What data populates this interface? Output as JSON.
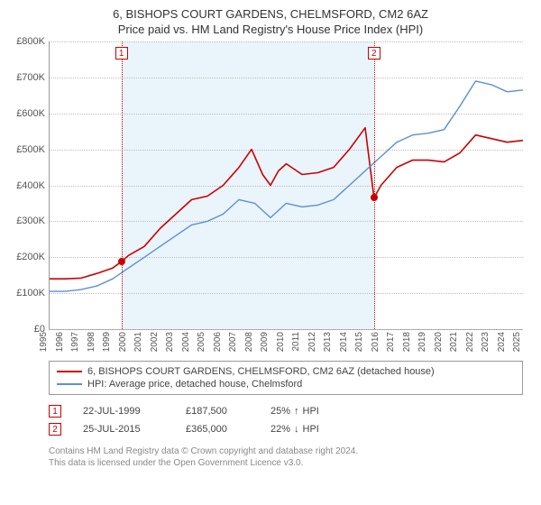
{
  "title_line1": "6, BISHOPS COURT GARDENS, CHELMSFORD, CM2 6AZ",
  "title_line2": "Price paid vs. HM Land Registry's House Price Index (HPI)",
  "chart": {
    "type": "line",
    "background_color": "#ffffff",
    "shaded_band_color": "#eaf4fb",
    "grid_color": "#bfbfbf",
    "axis_color": "#999999",
    "label_fontsize": 11,
    "y": {
      "min": 0,
      "max": 800000,
      "tick_step": 100000,
      "ticks": [
        "£0",
        "£100K",
        "£200K",
        "£300K",
        "£400K",
        "£500K",
        "£600K",
        "£700K",
        "£800K"
      ]
    },
    "x": {
      "start_year": 1995,
      "end_year": 2025,
      "ticks": [
        "1995",
        "1996",
        "1997",
        "1998",
        "1999",
        "2000",
        "2001",
        "2002",
        "2003",
        "2004",
        "2005",
        "2006",
        "2007",
        "2008",
        "2009",
        "2010",
        "2011",
        "2012",
        "2013",
        "2014",
        "2015",
        "2016",
        "2017",
        "2018",
        "2019",
        "2020",
        "2021",
        "2022",
        "2023",
        "2024",
        "2025"
      ]
    },
    "series": [
      {
        "id": "subject",
        "label": "6, BISHOPS COURT GARDENS, CHELMSFORD, CM2 6AZ (detached house)",
        "color": "#cc0000",
        "line_width": 1.6,
        "points": [
          [
            1995.0,
            140000
          ],
          [
            1996.0,
            140000
          ],
          [
            1997.0,
            142000
          ],
          [
            1998.0,
            155000
          ],
          [
            1999.0,
            170000
          ],
          [
            1999.55,
            187500
          ],
          [
            2000.0,
            205000
          ],
          [
            2001.0,
            230000
          ],
          [
            2002.0,
            280000
          ],
          [
            2003.0,
            320000
          ],
          [
            2004.0,
            360000
          ],
          [
            2005.0,
            370000
          ],
          [
            2006.0,
            400000
          ],
          [
            2007.0,
            450000
          ],
          [
            2007.8,
            500000
          ],
          [
            2008.5,
            430000
          ],
          [
            2009.0,
            400000
          ],
          [
            2009.5,
            440000
          ],
          [
            2010.0,
            460000
          ],
          [
            2011.0,
            430000
          ],
          [
            2012.0,
            435000
          ],
          [
            2013.0,
            450000
          ],
          [
            2014.0,
            500000
          ],
          [
            2015.0,
            560000
          ],
          [
            2015.56,
            365000
          ],
          [
            2016.0,
            400000
          ],
          [
            2017.0,
            450000
          ],
          [
            2018.0,
            470000
          ],
          [
            2019.0,
            470000
          ],
          [
            2020.0,
            465000
          ],
          [
            2021.0,
            490000
          ],
          [
            2022.0,
            540000
          ],
          [
            2023.0,
            530000
          ],
          [
            2024.0,
            520000
          ],
          [
            2025.0,
            525000
          ]
        ]
      },
      {
        "id": "hpi",
        "label": "HPI: Average price, detached house, Chelmsford",
        "color": "#5b8fd6",
        "line_width": 1.4,
        "points": [
          [
            1995.0,
            105000
          ],
          [
            1996.0,
            105000
          ],
          [
            1997.0,
            110000
          ],
          [
            1998.0,
            120000
          ],
          [
            1999.0,
            140000
          ],
          [
            2000.0,
            170000
          ],
          [
            2001.0,
            200000
          ],
          [
            2002.0,
            230000
          ],
          [
            2003.0,
            260000
          ],
          [
            2004.0,
            290000
          ],
          [
            2005.0,
            300000
          ],
          [
            2006.0,
            320000
          ],
          [
            2007.0,
            360000
          ],
          [
            2008.0,
            350000
          ],
          [
            2009.0,
            310000
          ],
          [
            2010.0,
            350000
          ],
          [
            2011.0,
            340000
          ],
          [
            2012.0,
            345000
          ],
          [
            2013.0,
            360000
          ],
          [
            2014.0,
            400000
          ],
          [
            2015.0,
            440000
          ],
          [
            2016.0,
            480000
          ],
          [
            2017.0,
            520000
          ],
          [
            2018.0,
            540000
          ],
          [
            2019.0,
            545000
          ],
          [
            2020.0,
            555000
          ],
          [
            2021.0,
            620000
          ],
          [
            2022.0,
            690000
          ],
          [
            2023.0,
            680000
          ],
          [
            2024.0,
            660000
          ],
          [
            2025.0,
            665000
          ]
        ]
      }
    ],
    "shaded_band": {
      "start_year": 1999.55,
      "end_year": 2015.56
    },
    "events": [
      {
        "num": "1",
        "year": 1999.55,
        "value": 187500,
        "color": "#cc0000"
      },
      {
        "num": "2",
        "year": 2015.56,
        "value": 365000,
        "color": "#cc0000"
      }
    ]
  },
  "legend": {
    "border_color": "#999999",
    "items": [
      {
        "color": "#cc0000",
        "label": "6, BISHOPS COURT GARDENS, CHELMSFORD, CM2 6AZ (detached house)"
      },
      {
        "color": "#5b8fd6",
        "label": "HPI: Average price, detached house, Chelmsford"
      }
    ]
  },
  "events_table": {
    "rows": [
      {
        "num": "1",
        "color": "#cc0000",
        "date": "22-JUL-1999",
        "price": "£187,500",
        "pct": "25%",
        "direction": "up",
        "suffix": "HPI"
      },
      {
        "num": "2",
        "color": "#cc0000",
        "date": "25-JUL-2015",
        "price": "£365,000",
        "pct": "22%",
        "direction": "down",
        "suffix": "HPI"
      }
    ]
  },
  "footer": {
    "line1": "Contains HM Land Registry data © Crown copyright and database right 2024.",
    "line2": "This data is licensed under the Open Government Licence v3.0."
  }
}
